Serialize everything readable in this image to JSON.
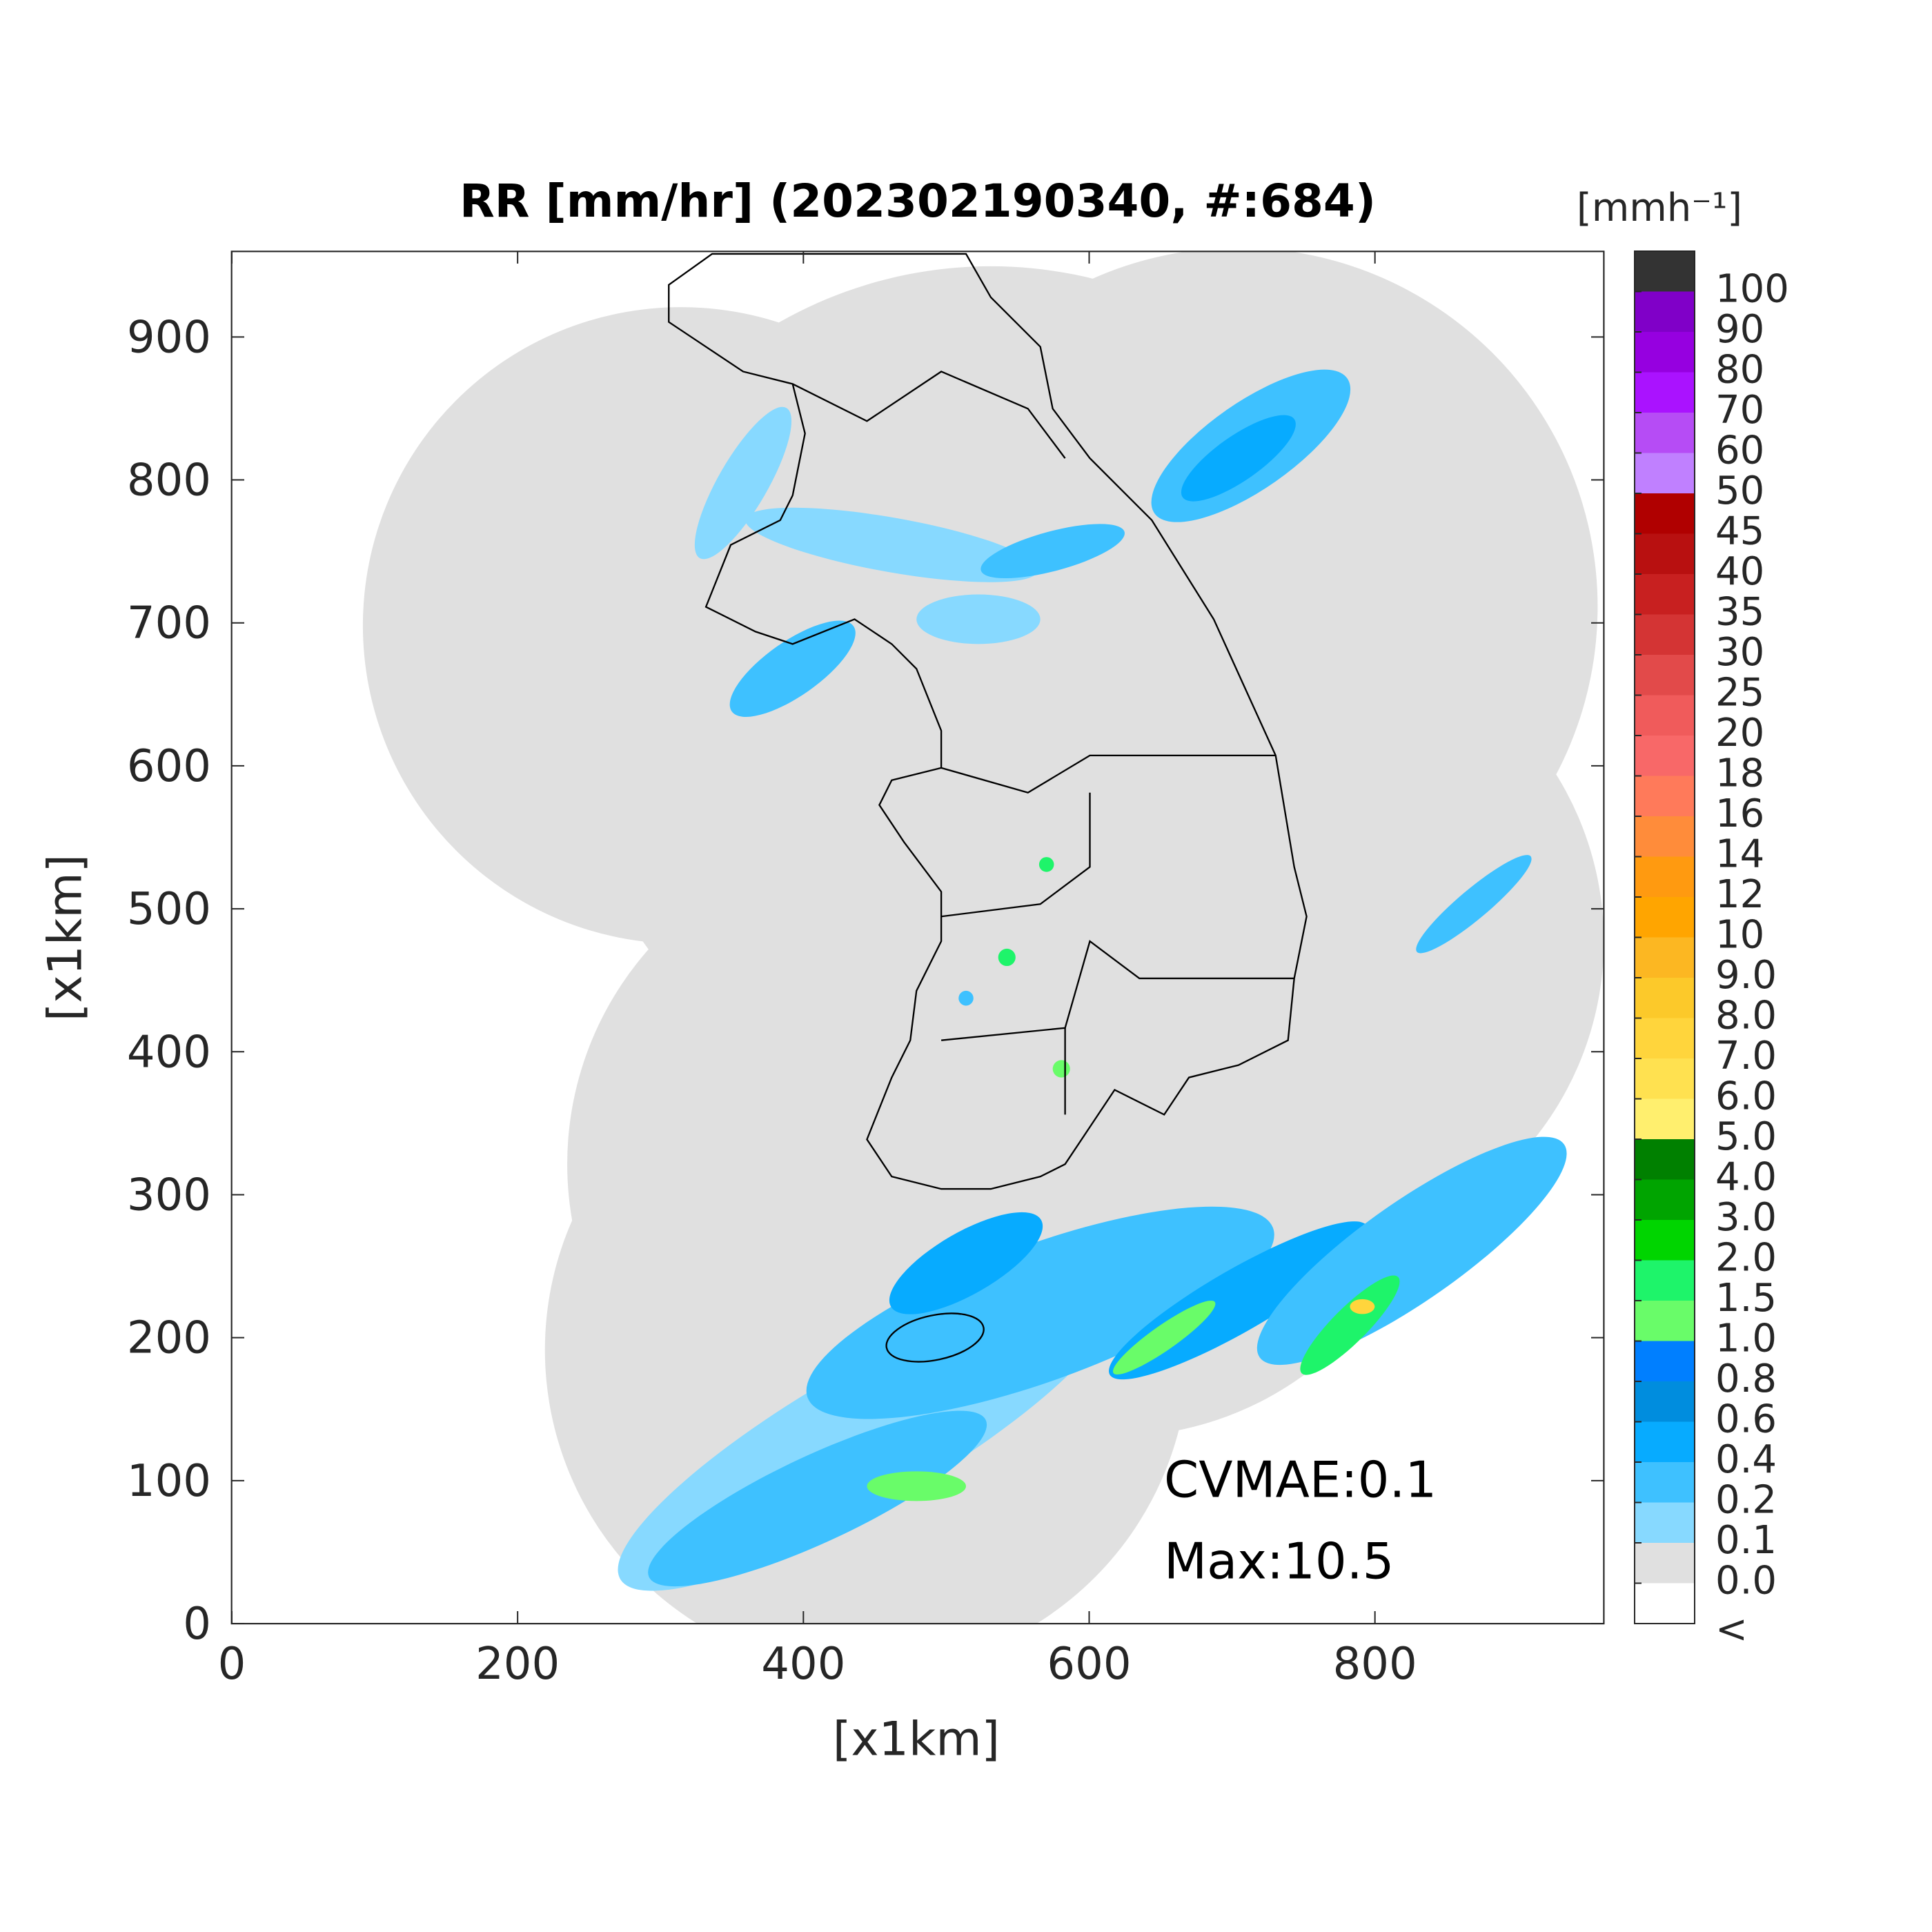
{
  "chart_data": {
    "type": "map",
    "title": "RR [mm/hr] (202302190340, #:684)",
    "xlabel": "[x1km]",
    "ylabel": "[x1km]",
    "xlim": [
      0,
      960
    ],
    "ylim": [
      0,
      960
    ],
    "xticks": [
      0,
      200,
      400,
      600,
      800
    ],
    "yticks": [
      0,
      100,
      200,
      300,
      400,
      500,
      600,
      700,
      800,
      900
    ],
    "annotations": [
      "CVMAE:0.1",
      "Max:10.5"
    ],
    "colorbar": {
      "title": "[mmh⁻¹]",
      "under_label": "<",
      "under_color": "#ffffff",
      "ticks": [
        {
          "value": 0,
          "label": "0.0"
        },
        0.1,
        0.2,
        0.4,
        0.6,
        0.8,
        {
          "value": 1,
          "label": "1.0"
        },
        1.5,
        {
          "value": 2,
          "label": "2.0"
        },
        {
          "value": 3,
          "label": "3.0"
        },
        {
          "value": 4,
          "label": "4.0"
        },
        {
          "value": 5,
          "label": "5.0"
        },
        {
          "value": 6,
          "label": "6.0"
        },
        {
          "value": 7,
          "label": "7.0"
        },
        {
          "value": 8,
          "label": "8.0"
        },
        {
          "value": 9,
          "label": "9.0"
        },
        10,
        12,
        14,
        16,
        18,
        20,
        25,
        30,
        35,
        40,
        45,
        50,
        60,
        70,
        80,
        90,
        100
      ],
      "colors": [
        "#e0e0e0",
        "#87d9ff",
        "#3ec1ff",
        "#07abff",
        "#008dde",
        "#007fff",
        "#69fc69",
        "#1ef46a",
        "#00d500",
        "#00a400",
        "#008000",
        "#ffef6e",
        "#ffe150",
        "#ffd53c",
        "#fcc92a",
        "#fcb722",
        "#ffa500",
        "#ff9a10",
        "#ff8c3a",
        "#ff7a5a",
        "#f86868",
        "#f05b5b",
        "#e24a4a",
        "#d43434",
        "#c82020",
        "#b81010",
        "#b00000",
        "#c080ff",
        "#b64cf5",
        "#aa12ff",
        "#9600e0",
        "#8000c8",
        "#333333"
      ]
    }
  }
}
